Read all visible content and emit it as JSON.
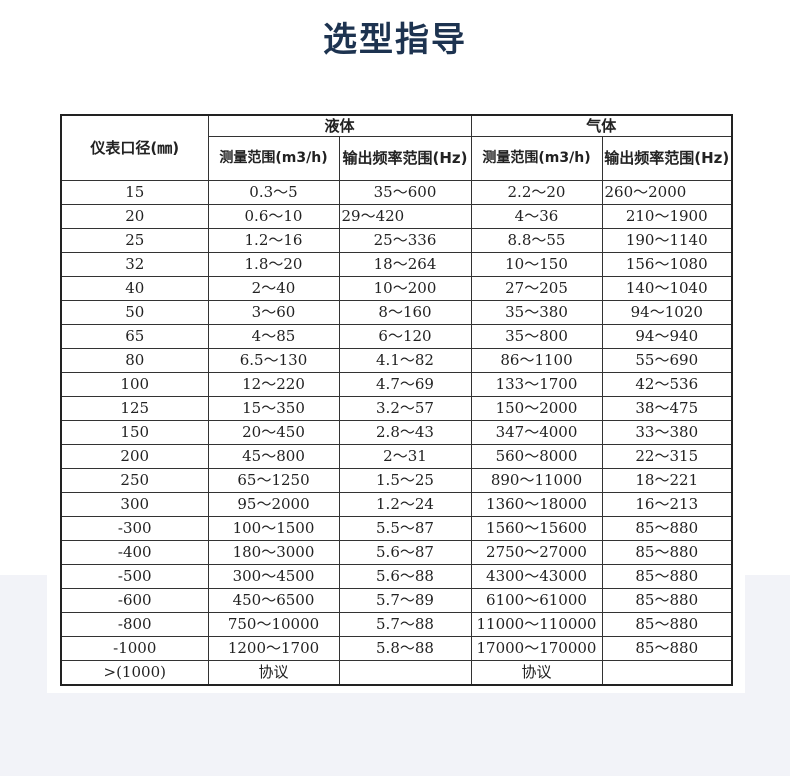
{
  "title": "选型指导",
  "table": {
    "header": {
      "size": "仪表口径(㎜)",
      "liquid": "液体",
      "gas": "气体",
      "range": "测量范围(m3/h)",
      "freq": "输出频率范围(Hz)"
    },
    "rows": [
      [
        "15",
        "0.3～5",
        "35～600",
        "2.2～20",
        "260～2000"
      ],
      [
        "20",
        "0.6～10",
        "29～420",
        "4～36",
        "210～1900"
      ],
      [
        "25",
        "1.2～16",
        "25～336",
        "8.8～55",
        "190～1140"
      ],
      [
        "32",
        "1.8～20",
        "18～264",
        "10～150",
        "156～1080"
      ],
      [
        "40",
        "2～40",
        "10～200",
        "27～205",
        "140～1040"
      ],
      [
        "50",
        "3～60",
        "8～160",
        "35～380",
        "94～1020"
      ],
      [
        "65",
        "4～85",
        "6～120",
        "35～800",
        "94～940"
      ],
      [
        "80",
        "6.5～130",
        "4.1～82",
        "86～1100",
        "55～690"
      ],
      [
        "100",
        "12～220",
        "4.7～69",
        "133～1700",
        "42～536"
      ],
      [
        "125",
        "15～350",
        "3.2～57",
        "150～2000",
        "38～475"
      ],
      [
        "150",
        "20～450",
        "2.8～43",
        "347～4000",
        "33～380"
      ],
      [
        "200",
        "45～800",
        "2～31",
        "560～8000",
        "22～315"
      ],
      [
        "250",
        "65～1250",
        "1.5～25",
        "890～11000",
        "18～221"
      ],
      [
        "300",
        "95～2000",
        "1.2～24",
        "1360～18000",
        "16～213"
      ],
      [
        "-300",
        "100～1500",
        "5.5～87",
        "1560～15600",
        "85～880"
      ],
      [
        "-400",
        "180～3000",
        "5.6～87",
        "2750～27000",
        "85～880"
      ],
      [
        "-500",
        "300～4500",
        "5.6～88",
        "4300～43000",
        "85～880"
      ],
      [
        "-600",
        "450～6500",
        "5.7～89",
        "6100～61000",
        "85～880"
      ],
      [
        "-800",
        "750～10000",
        "5.7～88",
        "11000～110000",
        "85～880"
      ],
      [
        "-1000",
        "1200～1700",
        "5.8～88",
        "17000～170000",
        "85～880"
      ],
      [
        ">(1000)",
        "协议",
        "",
        "协议",
        ""
      ]
    ]
  }
}
